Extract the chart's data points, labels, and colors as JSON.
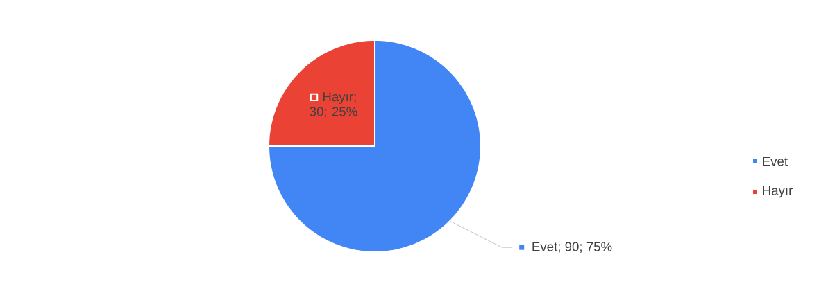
{
  "chart_data": {
    "type": "pie",
    "categories": [
      "Evet",
      "Hayır"
    ],
    "values": [
      90,
      30
    ],
    "colors": [
      "#4285f4",
      "#ea4335"
    ],
    "value_labels": [
      "Evet; 90; 75%",
      "Hayır; 30; 25%"
    ],
    "legend": "right"
  }
}
